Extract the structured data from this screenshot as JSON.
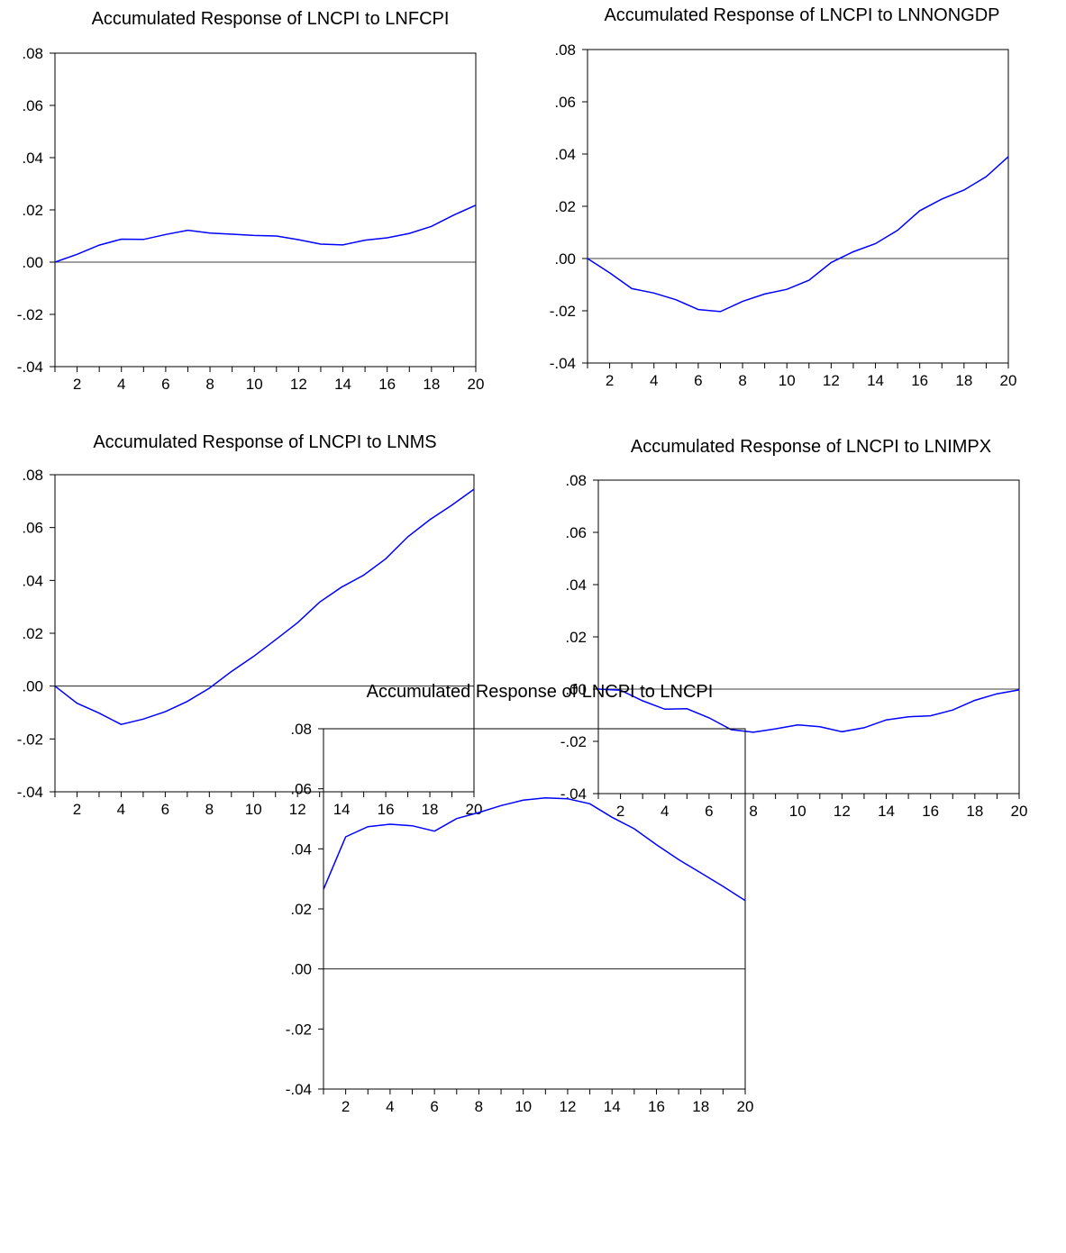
{
  "chart_data": [
    {
      "type": "line",
      "title": "Accumulated Response of LNCPI to LNFCPI",
      "x": [
        1,
        2,
        3,
        4,
        5,
        6,
        7,
        8,
        9,
        10,
        11,
        12,
        13,
        14,
        15,
        16,
        17,
        18,
        19,
        20
      ],
      "xticks": [
        2,
        4,
        6,
        8,
        10,
        12,
        14,
        16,
        18,
        20
      ],
      "xlim": [
        1,
        20
      ],
      "ylim": [
        -0.04,
        0.08
      ],
      "yticks": [
        -0.04,
        -0.02,
        0.0,
        0.02,
        0.04,
        0.06,
        0.08
      ],
      "ytick_labels": [
        "-.04",
        "-.02",
        ".00",
        ".02",
        ".04",
        ".06",
        ".08"
      ],
      "zero_line": true,
      "grid": false,
      "line_color": "#0000ff",
      "series": [
        {
          "values": [
            0.0,
            0.003,
            0.0065,
            0.0088,
            0.0087,
            0.0106,
            0.0122,
            0.0111,
            0.0107,
            0.0102,
            0.01,
            0.0086,
            0.0069,
            0.0066,
            0.0084,
            0.0093,
            0.011,
            0.0137,
            0.018,
            0.0218
          ]
        }
      ]
    },
    {
      "type": "line",
      "title": "Accumulated Response of LNCPI to LNNONGDP",
      "x": [
        1,
        2,
        3,
        4,
        5,
        6,
        7,
        8,
        9,
        10,
        11,
        12,
        13,
        14,
        15,
        16,
        17,
        18,
        19,
        20
      ],
      "xticks": [
        2,
        4,
        6,
        8,
        10,
        12,
        14,
        16,
        18,
        20
      ],
      "xlim": [
        1,
        20
      ],
      "ylim": [
        -0.04,
        0.08
      ],
      "yticks": [
        -0.04,
        -0.02,
        0.0,
        0.02,
        0.04,
        0.06,
        0.08
      ],
      "ytick_labels": [
        "-.04",
        "-.02",
        ".00",
        ".02",
        ".04",
        ".06",
        ".08"
      ],
      "zero_line": true,
      "grid": false,
      "line_color": "#0000ff",
      "series": [
        {
          "values": [
            0.0,
            -0.0055,
            -0.0115,
            -0.0132,
            -0.0158,
            -0.0195,
            -0.0203,
            -0.0164,
            -0.0136,
            -0.0118,
            -0.0083,
            -0.0015,
            0.0026,
            0.0057,
            0.0108,
            0.0183,
            0.0228,
            0.0262,
            0.0313,
            0.039
          ]
        }
      ]
    },
    {
      "type": "line",
      "title": "Accumulated Response of LNCPI to LNMS",
      "x": [
        1,
        2,
        3,
        4,
        5,
        6,
        7,
        8,
        9,
        10,
        11,
        12,
        13,
        14,
        15,
        16,
        17,
        18,
        19,
        20
      ],
      "xticks": [
        2,
        4,
        6,
        8,
        10,
        12,
        14,
        16,
        18,
        20
      ],
      "xlim": [
        1,
        20
      ],
      "ylim": [
        -0.04,
        0.08
      ],
      "yticks": [
        -0.04,
        -0.02,
        0.0,
        0.02,
        0.04,
        0.06,
        0.08
      ],
      "ytick_labels": [
        "-.04",
        "-.02",
        ".00",
        ".02",
        ".04",
        ".06",
        ".08"
      ],
      "zero_line": true,
      "grid": false,
      "line_color": "#0000ff",
      "series": [
        {
          "values": [
            0.0,
            -0.0065,
            -0.0102,
            -0.0145,
            -0.0125,
            -0.0097,
            -0.0058,
            -0.0008,
            0.0055,
            0.0112,
            0.0175,
            0.024,
            0.0318,
            0.0375,
            0.042,
            0.0482,
            0.0565,
            0.063,
            0.0685,
            0.0745
          ]
        }
      ]
    },
    {
      "type": "line",
      "title": "Accumulated Response of LNCPI to LNIMPX",
      "x": [
        1,
        2,
        3,
        4,
        5,
        6,
        7,
        8,
        9,
        10,
        11,
        12,
        13,
        14,
        15,
        16,
        17,
        18,
        19,
        20
      ],
      "xticks": [
        2,
        4,
        6,
        8,
        10,
        12,
        14,
        16,
        18,
        20
      ],
      "xlim": [
        1,
        20
      ],
      "ylim": [
        -0.04,
        0.08
      ],
      "yticks": [
        -0.04,
        -0.02,
        0.0,
        0.02,
        0.04,
        0.06,
        0.08
      ],
      "ytick_labels": [
        "-.04",
        "-.02",
        ".00",
        ".02",
        ".04",
        ".06",
        ".08"
      ],
      "zero_line": true,
      "grid": false,
      "line_color": "#0000ff",
      "series": [
        {
          "values": [
            0.0,
            -0.0004,
            -0.0045,
            -0.0077,
            -0.0075,
            -0.011,
            -0.0155,
            -0.0165,
            -0.0152,
            -0.0137,
            -0.0144,
            -0.0163,
            -0.0148,
            -0.0118,
            -0.0106,
            -0.0102,
            -0.008,
            -0.0043,
            -0.0018,
            -0.0003
          ]
        }
      ]
    },
    {
      "type": "line",
      "title": "Accumulated Response of LNCPI to LNCPI",
      "x": [
        1,
        2,
        3,
        4,
        5,
        6,
        7,
        8,
        9,
        10,
        11,
        12,
        13,
        14,
        15,
        16,
        17,
        18,
        19,
        20
      ],
      "xticks": [
        2,
        4,
        6,
        8,
        10,
        12,
        14,
        16,
        18,
        20
      ],
      "xlim": [
        1,
        20
      ],
      "ylim": [
        -0.04,
        0.08
      ],
      "yticks": [
        -0.04,
        -0.02,
        0.0,
        0.02,
        0.04,
        0.06,
        0.08
      ],
      "ytick_labels": [
        "-.04",
        "-.02",
        ".00",
        ".02",
        ".04",
        ".06",
        ".08"
      ],
      "zero_line": true,
      "grid": false,
      "line_color": "#0000ff",
      "series": [
        {
          "values": [
            0.0265,
            0.044,
            0.0474,
            0.0482,
            0.0477,
            0.0459,
            0.0501,
            0.0521,
            0.0544,
            0.0562,
            0.057,
            0.0567,
            0.055,
            0.0505,
            0.0467,
            0.0414,
            0.0364,
            0.032,
            0.0275,
            0.0228
          ]
        }
      ]
    }
  ]
}
